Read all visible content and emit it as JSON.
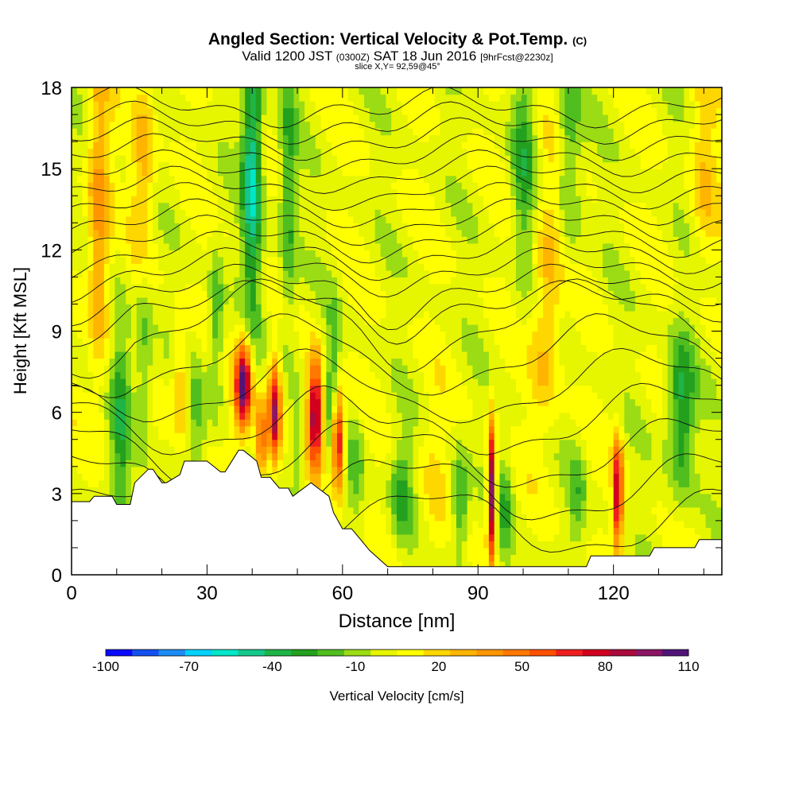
{
  "header": {
    "title": "Angled Section: Vertical Velocity & Pot.Temp.",
    "title_unit": "(C)",
    "valid_prefix": "Valid 1200 JST",
    "valid_utc": "(0300Z)",
    "valid_date": "SAT 18 Jun 2016",
    "forecast_info": "[9hrFcst@2230z]",
    "slice": "slice X,Y= 92,59@45°"
  },
  "chart_data": {
    "type": "heatmap",
    "title": "Angled Section: Vertical Velocity & Pot.Temp. (C)",
    "xlabel": "Distance [nm]",
    "ylabel": "Height [Kft MSL]",
    "xlim": [
      0,
      144
    ],
    "ylim": [
      0,
      18
    ],
    "x_ticks": [
      "0",
      "30",
      "60",
      "90",
      "120"
    ],
    "x_tick_values": [
      0,
      30,
      60,
      90,
      120
    ],
    "y_ticks": [
      "0",
      "3",
      "6",
      "9",
      "12",
      "15",
      "18"
    ],
    "y_tick_values": [
      0,
      3,
      6,
      9,
      12,
      15,
      18
    ],
    "colorbar": {
      "label": "Vertical Velocity [cm/s]",
      "tick_labels": [
        "-100",
        "-70",
        "-40",
        "-10",
        "20",
        "50",
        "80",
        "110"
      ],
      "tick_values": [
        -100,
        -70,
        -40,
        -10,
        20,
        50,
        80,
        110
      ],
      "levels": [
        -100,
        -90,
        -80,
        -70,
        -60,
        -50,
        -40,
        -30,
        -20,
        -10,
        0,
        10,
        20,
        30,
        40,
        50,
        60,
        70,
        80,
        90,
        100,
        110
      ],
      "colors": [
        "#0a0aff",
        "#1450f0",
        "#1e8cf5",
        "#00d2ff",
        "#00e6c8",
        "#14c88c",
        "#1eb446",
        "#23a01e",
        "#50be1e",
        "#9bdc14",
        "#e6f500",
        "#ffff00",
        "#ffd700",
        "#ffb400",
        "#ff9600",
        "#ff7800",
        "#ff5000",
        "#f01e1e",
        "#d2001e",
        "#aa0a3c",
        "#8c1464",
        "#501478"
      ]
    },
    "terrain_profile": {
      "x": [
        0,
        4,
        5,
        9,
        10,
        13,
        14,
        17,
        18,
        20,
        21,
        24,
        25,
        27,
        30,
        33,
        34,
        37,
        38,
        41,
        42,
        44,
        46,
        48,
        49,
        53,
        57,
        58,
        60,
        62,
        64,
        66,
        68,
        70,
        79,
        80,
        114,
        115,
        128,
        129,
        138,
        139,
        144
      ],
      "height": [
        2.7,
        2.7,
        2.9,
        2.9,
        2.6,
        2.6,
        3.4,
        3.9,
        3.9,
        3.4,
        3.4,
        3.7,
        4.2,
        4.2,
        4.2,
        3.8,
        3.8,
        4.6,
        4.6,
        4.2,
        3.6,
        3.6,
        3.2,
        3.2,
        2.9,
        3.4,
        2.9,
        2.3,
        1.7,
        1.7,
        1.3,
        0.9,
        0.6,
        0.3,
        0.3,
        0.3,
        0.3,
        0.7,
        0.7,
        1.0,
        1.0,
        1.3,
        1.3
      ]
    },
    "contour_label": "Pot.Temp. (C) isentropes"
  }
}
